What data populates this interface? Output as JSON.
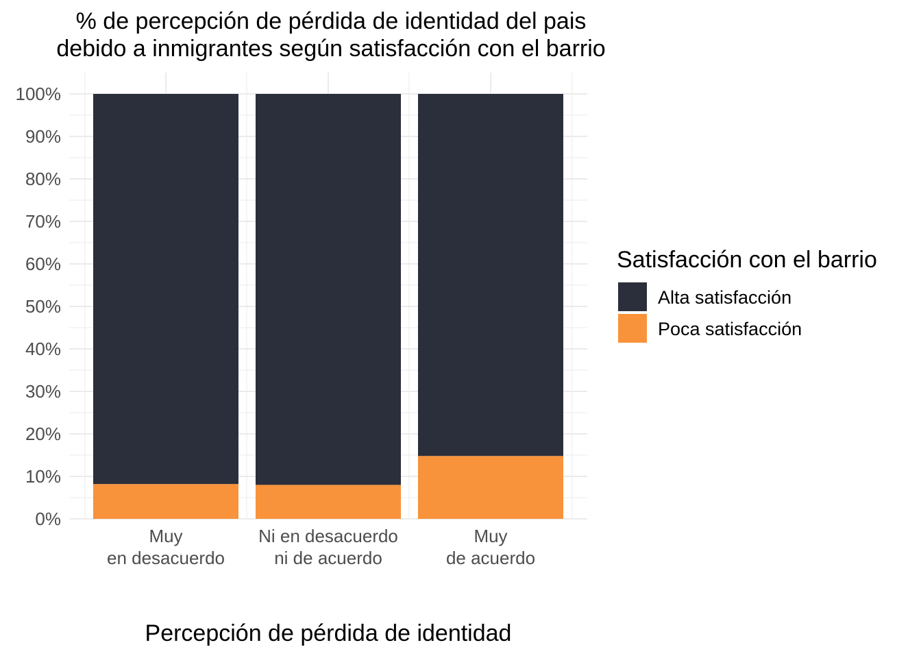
{
  "chart_data": {
    "type": "bar",
    "stacked": true,
    "title": [
      "% de percepción de pérdida de identidad del pais",
      "debido a inmigrantes según satisfacción con el barrio"
    ],
    "xlabel": "Percepción de pérdida de identidad",
    "ylabel": "",
    "categories": [
      [
        "Muy",
        "en desacuerdo"
      ],
      [
        "Ni en desacuerdo",
        "ni de acuerdo"
      ],
      [
        "Muy",
        "de acuerdo"
      ]
    ],
    "series": [
      {
        "name": "Alta satisfacción",
        "color": "#2b2f3b",
        "values": [
          0.918,
          0.92,
          0.852
        ]
      },
      {
        "name": "Poca satisfacción",
        "color": "#f8933b",
        "values": [
          0.082,
          0.08,
          0.148
        ]
      }
    ],
    "y_ticks": [
      "0%",
      "10%",
      "20%",
      "30%",
      "40%",
      "50%",
      "60%",
      "70%",
      "80%",
      "90%",
      "100%"
    ],
    "ylim": [
      0,
      1
    ],
    "grid": true,
    "legend": {
      "title": "Satisfacción con el barrio",
      "position": "right",
      "entries": [
        "Alta satisfacción",
        "Poca satisfacción"
      ]
    }
  }
}
